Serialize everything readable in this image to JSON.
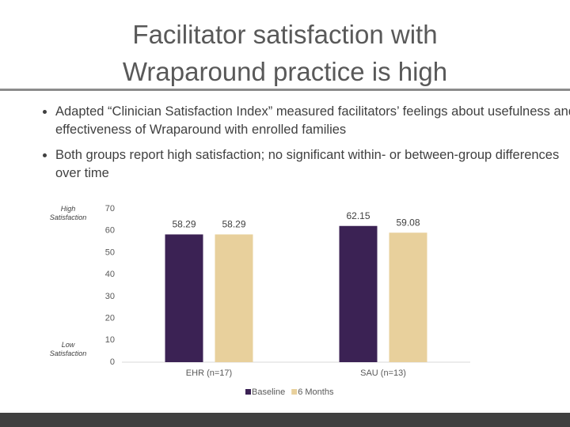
{
  "title": "Facilitator satisfaction with Wraparound practice is high",
  "bullets": [
    "Adapted “Clinician Satisfaction Index” measured facilitators’ feelings about usefulness and effectiveness of Wraparound with enrolled families",
    "Both groups report high satisfaction; no significant within- or between-group differences over time"
  ],
  "chart_data": {
    "type": "bar",
    "categories": [
      "EHR (n=17)",
      "SAU (n=13)"
    ],
    "series": [
      {
        "name": "Baseline",
        "color": "#3b2254",
        "values": [
          58.29,
          62.15
        ]
      },
      {
        "name": "6 Months",
        "color": "#e8d09c",
        "values": [
          58.29,
          59.08
        ]
      }
    ],
    "ylim": [
      0,
      70
    ],
    "yticks": [
      0,
      10,
      20,
      30,
      40,
      50,
      60,
      70
    ],
    "annotations": [
      "High Satisfaction",
      "Low Satisfaction"
    ],
    "legend": "bottom"
  }
}
